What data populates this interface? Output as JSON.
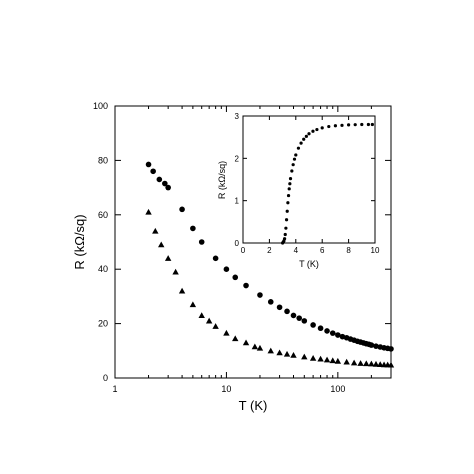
{
  "chart_data": [
    {
      "type": "scatter",
      "xlabel": "T (K)",
      "ylabel": "R (kΩ/sq)",
      "xscale": "log",
      "xlim": [
        1,
        300
      ],
      "ylim": [
        0,
        100
      ],
      "x_ticks": [
        {
          "value": 1,
          "label": "1"
        },
        {
          "value": 10,
          "label": "10"
        },
        {
          "value": 100,
          "label": "100"
        }
      ],
      "y_ticks": [
        {
          "value": 0,
          "label": "0"
        },
        {
          "value": 20,
          "label": "20"
        },
        {
          "value": 40,
          "label": "40"
        },
        {
          "value": 60,
          "label": "60"
        },
        {
          "value": 80,
          "label": "80"
        },
        {
          "value": 100,
          "label": "100"
        }
      ],
      "series": [
        {
          "marker": "circle",
          "color": "#000000",
          "points": [
            [
              2.0,
              78.5
            ],
            [
              2.2,
              76
            ],
            [
              2.5,
              73
            ],
            [
              2.8,
              71.5
            ],
            [
              3.0,
              70
            ],
            [
              4.0,
              62
            ],
            [
              5.0,
              55
            ],
            [
              6.0,
              50
            ],
            [
              8.0,
              44
            ],
            [
              10.0,
              40
            ],
            [
              12.0,
              37
            ],
            [
              15.0,
              34
            ],
            [
              20.0,
              30.5
            ],
            [
              25.0,
              28
            ],
            [
              30.0,
              26
            ],
            [
              35.0,
              24.5
            ],
            [
              40.0,
              23
            ],
            [
              45.0,
              22
            ],
            [
              50.0,
              21
            ],
            [
              60.0,
              19.5
            ],
            [
              70.0,
              18.3
            ],
            [
              80.0,
              17.3
            ],
            [
              90.0,
              16.5
            ],
            [
              100.0,
              15.8
            ],
            [
              110.0,
              15.2
            ],
            [
              120.0,
              14.8
            ],
            [
              130.0,
              14.3
            ],
            [
              140.0,
              13.9
            ],
            [
              150.0,
              13.5
            ],
            [
              160.0,
              13.2
            ],
            [
              170.0,
              12.9
            ],
            [
              180.0,
              12.6
            ],
            [
              190.0,
              12.4
            ],
            [
              200.0,
              12.1
            ],
            [
              220.0,
              11.7
            ],
            [
              240.0,
              11.4
            ],
            [
              260.0,
              11.1
            ],
            [
              280.0,
              10.9
            ],
            [
              300.0,
              10.7
            ]
          ]
        },
        {
          "marker": "triangle",
          "color": "#000000",
          "points": [
            [
              2.0,
              61
            ],
            [
              2.3,
              54
            ],
            [
              2.6,
              49
            ],
            [
              3.0,
              44
            ],
            [
              3.5,
              39
            ],
            [
              4.0,
              32
            ],
            [
              5.0,
              27
            ],
            [
              6.0,
              23
            ],
            [
              7.0,
              21
            ],
            [
              8.0,
              19
            ],
            [
              10.0,
              16.5
            ],
            [
              12.0,
              14.5
            ],
            [
              15.0,
              13
            ],
            [
              18.0,
              11.5
            ],
            [
              20.0,
              11
            ],
            [
              25.0,
              10
            ],
            [
              30.0,
              9.3
            ],
            [
              35.0,
              8.8
            ],
            [
              40.0,
              8.4
            ],
            [
              50.0,
              7.8
            ],
            [
              60.0,
              7.3
            ],
            [
              70.0,
              7.0
            ],
            [
              80.0,
              6.7
            ],
            [
              90.0,
              6.4
            ],
            [
              100.0,
              6.2
            ],
            [
              120.0,
              5.9
            ],
            [
              140.0,
              5.6
            ],
            [
              160.0,
              5.4
            ],
            [
              180.0,
              5.3
            ],
            [
              200.0,
              5.2
            ],
            [
              220.0,
              5.1
            ],
            [
              240.0,
              5.0
            ],
            [
              260.0,
              4.9
            ],
            [
              280.0,
              4.85
            ],
            [
              300.0,
              4.8
            ]
          ]
        }
      ]
    },
    {
      "type": "scatter",
      "inset": true,
      "xlabel": "T (K)",
      "ylabel": "R (kΩ/sq)",
      "xlim": [
        0,
        10
      ],
      "ylim": [
        0,
        3
      ],
      "x_ticks": [
        {
          "value": 0,
          "label": "0"
        },
        {
          "value": 2,
          "label": "2"
        },
        {
          "value": 4,
          "label": "4"
        },
        {
          "value": 6,
          "label": "6"
        },
        {
          "value": 8,
          "label": "8"
        },
        {
          "value": 10,
          "label": "10"
        }
      ],
      "y_ticks": [
        {
          "value": 0,
          "label": "0"
        },
        {
          "value": 1,
          "label": "1"
        },
        {
          "value": 2,
          "label": "2"
        },
        {
          "value": 3,
          "label": "3"
        }
      ],
      "series": [
        {
          "marker": "circle-small",
          "color": "#000000",
          "points": [
            [
              3.0,
              0.0
            ],
            [
              3.05,
              0.02
            ],
            [
              3.1,
              0.05
            ],
            [
              3.15,
              0.1
            ],
            [
              3.2,
              0.2
            ],
            [
              3.25,
              0.35
            ],
            [
              3.3,
              0.55
            ],
            [
              3.35,
              0.75
            ],
            [
              3.4,
              0.95
            ],
            [
              3.45,
              1.12
            ],
            [
              3.5,
              1.28
            ],
            [
              3.55,
              1.4
            ],
            [
              3.6,
              1.52
            ],
            [
              3.7,
              1.7
            ],
            [
              3.8,
              1.85
            ],
            [
              3.9,
              1.98
            ],
            [
              4.0,
              2.08
            ],
            [
              4.2,
              2.24
            ],
            [
              4.4,
              2.36
            ],
            [
              4.6,
              2.45
            ],
            [
              4.8,
              2.52
            ],
            [
              5.0,
              2.58
            ],
            [
              5.3,
              2.64
            ],
            [
              5.6,
              2.68
            ],
            [
              6.0,
              2.72
            ],
            [
              6.5,
              2.75
            ],
            [
              7.0,
              2.77
            ],
            [
              7.5,
              2.78
            ],
            [
              8.0,
              2.79
            ],
            [
              8.5,
              2.795
            ],
            [
              9.0,
              2.8
            ],
            [
              9.5,
              2.8
            ],
            [
              9.8,
              2.8
            ]
          ]
        }
      ]
    }
  ]
}
